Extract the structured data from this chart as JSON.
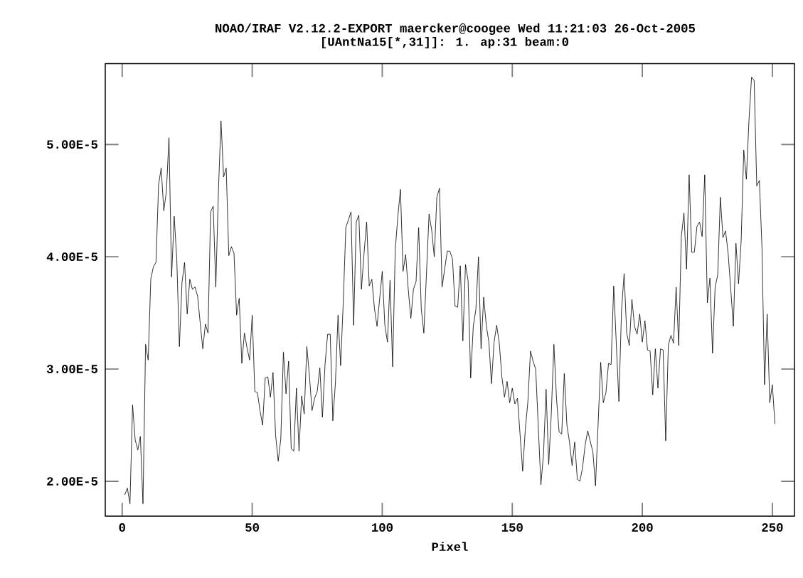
{
  "chart_data": {
    "type": "line",
    "title": "NOAO/IRAF V2.12.2-EXPORT maercker@coogee Wed 11:21:03 26-Oct-2005",
    "subtitle": "[UAntNa15[*,31]]:          1. ap:31 beam:0",
    "xlabel": "Pixel",
    "xlim": [
      -6.5,
      258.5
    ],
    "ylim": [
      1.69e-05,
      5.72e-05
    ],
    "xticks": [
      0,
      50,
      100,
      150,
      200,
      250
    ],
    "yticks": [
      {
        "value": 2e-05,
        "label": "2.00E-5"
      },
      {
        "value": 3e-05,
        "label": "3.00E-5"
      },
      {
        "value": 4e-05,
        "label": "4.00E-5"
      },
      {
        "value": 5e-05,
        "label": "5.00E-5"
      }
    ],
    "marker": "none",
    "line_style": "solid",
    "series": [
      {
        "color": "#000000",
        "x": [
          1,
          2,
          3,
          4,
          5,
          6,
          7,
          8,
          9,
          10,
          11,
          12,
          13,
          14,
          15,
          16,
          17,
          18,
          19,
          20,
          21,
          22,
          23,
          24,
          25,
          26,
          27,
          28,
          29,
          30,
          31,
          32,
          33,
          34,
          35,
          36,
          37,
          38,
          39,
          40,
          41,
          42,
          43,
          44,
          45,
          46,
          47,
          48,
          49,
          50,
          51,
          52,
          53,
          54,
          55,
          56,
          57,
          58,
          59,
          60,
          61,
          62,
          63,
          64,
          65,
          66,
          67,
          68,
          69,
          70,
          71,
          72,
          73,
          74,
          75,
          76,
          77,
          78,
          79,
          80,
          81,
          82,
          83,
          84,
          85,
          86,
          88,
          89,
          90,
          91,
          92,
          93,
          94,
          95,
          96,
          97,
          98,
          100,
          101,
          102,
          103,
          104,
          105,
          106,
          107,
          108,
          109,
          110,
          111,
          112,
          113,
          114,
          115,
          116,
          118,
          119,
          120,
          121,
          122,
          123,
          125,
          126,
          127,
          128,
          129,
          130,
          131,
          132,
          133,
          134,
          135,
          136,
          137,
          138,
          139,
          140,
          141,
          142,
          143,
          144,
          145,
          146,
          147,
          148,
          149,
          150,
          151,
          152,
          154,
          155,
          156,
          157,
          158,
          159,
          161,
          162,
          163,
          164,
          165,
          166,
          167,
          168,
          169,
          170,
          171,
          172,
          173,
          174,
          175,
          176,
          177,
          178,
          179,
          181,
          182,
          184,
          185,
          186,
          187,
          188,
          189,
          191,
          192,
          193,
          194,
          195,
          196,
          197,
          198,
          199,
          200,
          201,
          202,
          203,
          204,
          205,
          206,
          207,
          208,
          209,
          210,
          211,
          212,
          213,
          214,
          215,
          216,
          217,
          218,
          219,
          220,
          221,
          222,
          223,
          224,
          225,
          226,
          227,
          228,
          229,
          230,
          231,
          232,
          233,
          234,
          235,
          236,
          237,
          238,
          239,
          240,
          241,
          242,
          243,
          244,
          245,
          246,
          247,
          248,
          249,
          250,
          251
        ],
        "values": [
          1.88e-05,
          1.94e-05,
          1.8e-05,
          2.68e-05,
          2.37e-05,
          2.28e-05,
          2.4e-05,
          1.8e-05,
          3.22e-05,
          3.08e-05,
          3.8e-05,
          3.91e-05,
          3.95e-05,
          4.64e-05,
          4.79e-05,
          4.41e-05,
          4.58e-05,
          5.06e-05,
          3.82e-05,
          4.36e-05,
          3.98e-05,
          3.2e-05,
          3.77e-05,
          3.95e-05,
          3.49e-05,
          3.8e-05,
          3.71e-05,
          3.73e-05,
          3.65e-05,
          3.41e-05,
          3.18e-05,
          3.4e-05,
          3.32e-05,
          4.4e-05,
          4.45e-05,
          3.73e-05,
          4.58e-05,
          5.21e-05,
          4.71e-05,
          4.79e-05,
          4.01e-05,
          4.09e-05,
          4.03e-05,
          3.48e-05,
          3.63e-05,
          3.05e-05,
          3.32e-05,
          3.19e-05,
          3.08e-05,
          3.48e-05,
          2.8e-05,
          2.79e-05,
          2.63e-05,
          2.5e-05,
          2.92e-05,
          2.93e-05,
          2.75e-05,
          2.97e-05,
          2.41e-05,
          2.18e-05,
          2.38e-05,
          3.15e-05,
          2.78e-05,
          3.07e-05,
          2.29e-05,
          2.27e-05,
          2.83e-05,
          2.27e-05,
          2.76e-05,
          2.6e-05,
          3.2e-05,
          2.94e-05,
          2.63e-05,
          2.74e-05,
          2.8e-05,
          3.01e-05,
          2.57e-05,
          3.04e-05,
          3.31e-05,
          3.31e-05,
          2.54e-05,
          2.88e-05,
          3.48e-05,
          3.03e-05,
          3.59e-05,
          4.26e-05,
          4.4e-05,
          3.39e-05,
          4.31e-05,
          4.37e-05,
          3.71e-05,
          4.03e-05,
          4.31e-05,
          3.74e-05,
          3.8e-05,
          3.54e-05,
          3.38e-05,
          3.87e-05,
          3.39e-05,
          3.24e-05,
          3.79e-05,
          3.02e-05,
          4.06e-05,
          4.36e-05,
          4.6e-05,
          3.87e-05,
          4.02e-05,
          3.71e-05,
          3.45e-05,
          3.71e-05,
          3.78e-05,
          4.26e-05,
          3.54e-05,
          3.32e-05,
          4.38e-05,
          4.24e-05,
          4e-05,
          4.53e-05,
          4.61e-05,
          3.73e-05,
          4.05e-05,
          4.05e-05,
          3.98e-05,
          3.56e-05,
          3.55e-05,
          3.92e-05,
          3.25e-05,
          3.93e-05,
          3.79e-05,
          2.92e-05,
          3.38e-05,
          3.53e-05,
          4e-05,
          3.18e-05,
          3.64e-05,
          3.39e-05,
          3.24e-05,
          2.87e-05,
          3.24e-05,
          3.39e-05,
          3.23e-05,
          2.93e-05,
          2.75e-05,
          2.89e-05,
          2.7e-05,
          2.83e-05,
          2.69e-05,
          2.74e-05,
          2.09e-05,
          2.46e-05,
          2.71e-05,
          3.16e-05,
          3.07e-05,
          3e-05,
          1.97e-05,
          2.24e-05,
          2.82e-05,
          2.15e-05,
          2.6e-05,
          3.22e-05,
          2.74e-05,
          2.44e-05,
          2.42e-05,
          2.96e-05,
          2.5e-05,
          2.35e-05,
          2.14e-05,
          2.35e-05,
          2.02e-05,
          2e-05,
          2.12e-05,
          2.32e-05,
          2.45e-05,
          2.26e-05,
          1.96e-05,
          3.06e-05,
          2.7e-05,
          2.79e-05,
          3.05e-05,
          3.04e-05,
          3.74e-05,
          2.71e-05,
          3.52e-05,
          3.85e-05,
          3.32e-05,
          3.21e-05,
          3.62e-05,
          3.38e-05,
          3.31e-05,
          3.49e-05,
          3.24e-05,
          3.43e-05,
          3.17e-05,
          3.16e-05,
          2.77e-05,
          3.18e-05,
          2.83e-05,
          3.18e-05,
          3.17e-05,
          2.36e-05,
          3.21e-05,
          3.3e-05,
          3.23e-05,
          3.73e-05,
          3.21e-05,
          4.18e-05,
          4.39e-05,
          3.89e-05,
          4.73e-05,
          4.04e-05,
          4.04e-05,
          4.27e-05,
          4.31e-05,
          4.18e-05,
          4.73e-05,
          3.59e-05,
          3.81e-05,
          3.14e-05,
          3.73e-05,
          3.84e-05,
          4.53e-05,
          4.17e-05,
          4.23e-05,
          4.03e-05,
          3.71e-05,
          3.38e-05,
          4.12e-05,
          3.76e-05,
          4.14e-05,
          4.95e-05,
          4.69e-05,
          5.21e-05,
          5.6e-05,
          5.57e-05,
          4.63e-05,
          4.68e-05,
          4.09e-05,
          2.86e-05,
          3.49e-05,
          2.7e-05,
          2.86e-05,
          2.51e-05
        ]
      }
    ]
  }
}
